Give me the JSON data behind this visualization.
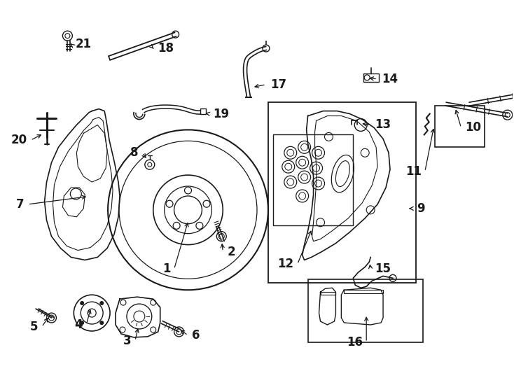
{
  "background_color": "#ffffff",
  "line_color": "#1a1a1a",
  "font_size": 12,
  "bold_font_size": 13
}
